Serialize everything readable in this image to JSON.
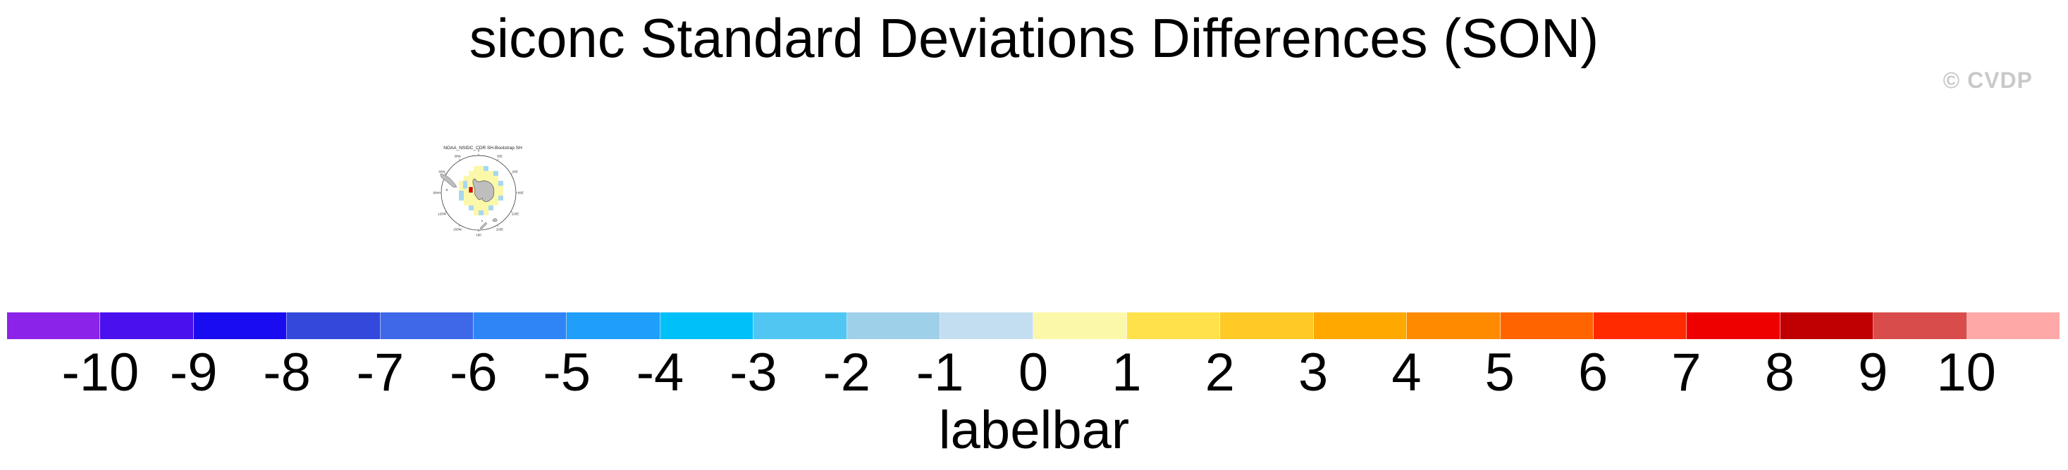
{
  "title": "siconc Standard Deviations Differences (SON)",
  "watermark": "© CVDP",
  "map": {
    "title": "NOAA_NSIDC_CDR SH-Bootstrap SH",
    "lon_labels": [
      "0",
      "30E",
      "60E",
      "90E",
      "120E",
      "150E",
      "180",
      "150W",
      "120W",
      "90W",
      "60W",
      "30W"
    ],
    "land_color": "#bebebe",
    "coast_color": "#555555",
    "cell_color_pos_0_1": "#FCF8AA",
    "cell_color_neg_1_0": "#A9D7EE",
    "cell_color_pos_high": "#DD0000"
  },
  "chart_data": {
    "type": "heatmap",
    "title": "siconc Standard Deviations Differences (SON)",
    "variable": "siconc",
    "statistic": "standard deviation difference",
    "season": "SON",
    "panels": [
      {
        "title": "NOAA_NSIDC_CDR SH-Bootstrap SH",
        "projection": "south polar stereographic",
        "region": "Southern Hemisphere / Antarctica",
        "description": "Blocky ring of difference values 0 to 1 (pale yellow) surrounding the Antarctic continent, values -1 to 0 (light blue) scattered along the outer sea-ice edge, and a single high positive cell (red) just west of the Antarctic Peninsula; continent and surrounding land shown in gray."
      }
    ],
    "colorbar": {
      "label": "labelbar",
      "orientation": "horizontal",
      "tick_labels": [
        "-10",
        "-9",
        "-8",
        "-7",
        "-6",
        "-5",
        "-4",
        "-3",
        "-2",
        "-1",
        "0",
        "1",
        "2",
        "3",
        "4",
        "5",
        "6",
        "7",
        "8",
        "9",
        "10"
      ],
      "tick_values": [
        -10,
        -9,
        -8,
        -7,
        -6,
        -5,
        -4,
        -3,
        -2,
        -1,
        0,
        1,
        2,
        3,
        4,
        5,
        6,
        7,
        8,
        9,
        10
      ],
      "colors": [
        "#8B23E8",
        "#4A10EE",
        "#1A0CF0",
        "#3349DB",
        "#3D69E9",
        "#2F85F6",
        "#1F9EFA",
        "#00C0FA",
        "#52C6F2",
        "#9FD0EA",
        "#C3DEF0",
        "#FCF8AA",
        "#FFE14C",
        "#FFC926",
        "#FFA800",
        "#FF8A00",
        "#FF6400",
        "#FF2A00",
        "#EE0000",
        "#C00000",
        "#D94C4C",
        "#FFA8A8"
      ]
    }
  }
}
